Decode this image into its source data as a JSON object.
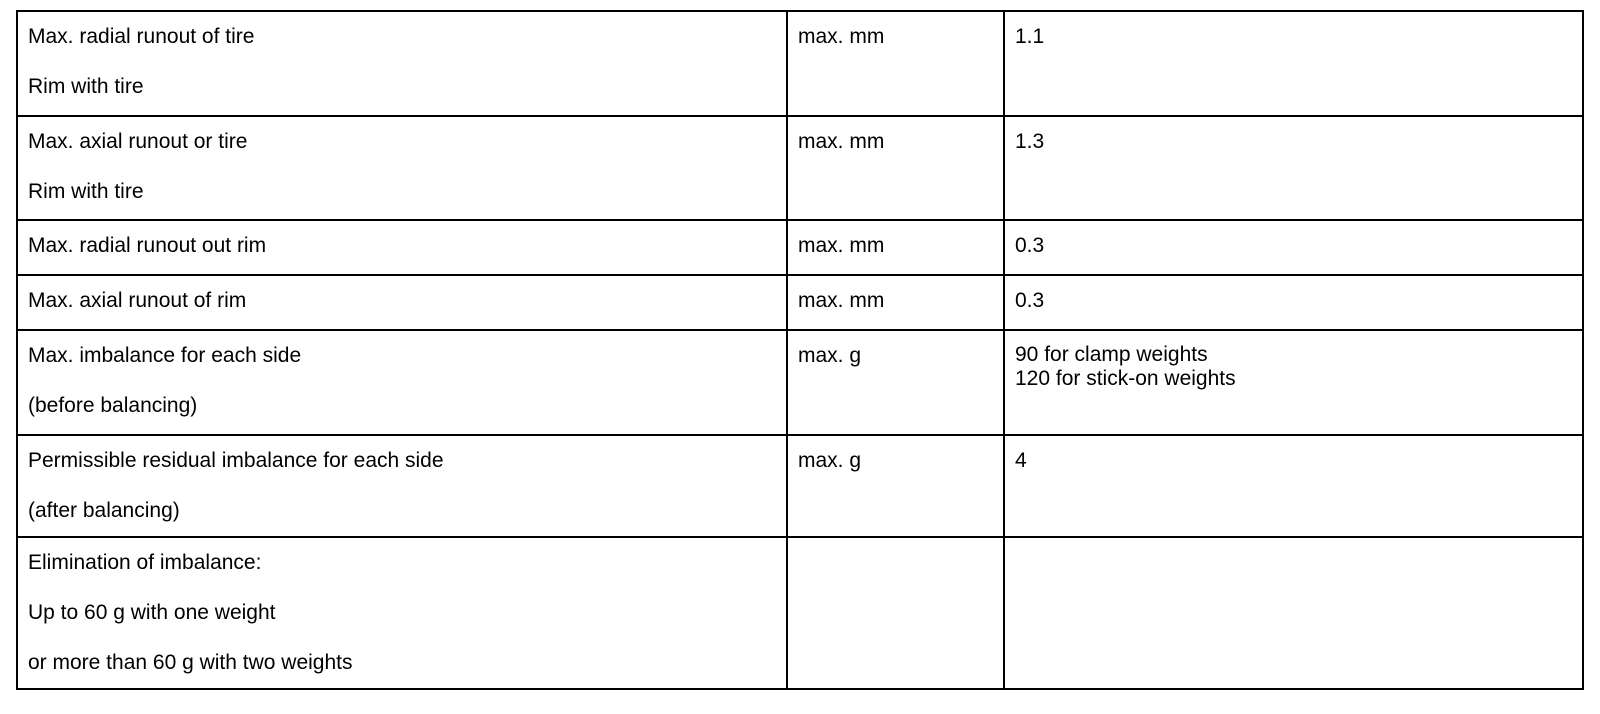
{
  "rows": [
    {
      "parameter": [
        "Max. radial runout of tire",
        "Rim with tire"
      ],
      "unit": "max. mm",
      "value": [
        "1.1"
      ]
    },
    {
      "parameter": [
        "Max. axial runout or tire",
        "Rim with tire"
      ],
      "unit": "max. mm",
      "value": [
        "1.3"
      ]
    },
    {
      "parameter": [
        "Max. radial runout out rim"
      ],
      "unit": "max. mm",
      "value": [
        "0.3"
      ]
    },
    {
      "parameter": [
        "Max. axial runout of rim"
      ],
      "unit": "max. mm",
      "value": [
        "0.3"
      ]
    },
    {
      "parameter": [
        "Max. imbalance for each side",
        "(before balancing)"
      ],
      "unit": "max. g",
      "value": [
        "90 for clamp weights",
        "120 for stick-on weights"
      ]
    },
    {
      "parameter": [
        "Permissible residual imbalance for each side",
        "(after balancing)"
      ],
      "unit": "max. g",
      "value": [
        "4"
      ]
    },
    {
      "parameter": [
        "Elimination of imbalance:",
        "Up to 60 g with one weight",
        "or more than 60 g with two weights"
      ],
      "unit": "",
      "value": []
    }
  ]
}
